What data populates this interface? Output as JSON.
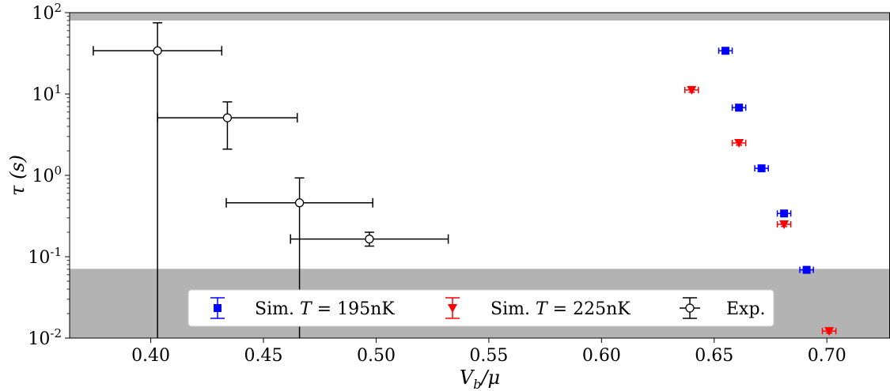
{
  "chart_data": {
    "type": "scatter",
    "title": "",
    "xlabel": "V_b/μ",
    "ylabel": "τ (s)",
    "xlim": [
      0.364,
      0.728
    ],
    "ylim": [
      0.01,
      100
    ],
    "yscale": "log",
    "grid": false,
    "legend_position": "lower-center",
    "x_ticks": [
      0.4,
      0.45,
      0.5,
      0.55,
      0.6,
      0.65,
      0.7
    ],
    "x_tick_labels": [
      "0.40",
      "0.45",
      "0.50",
      "0.55",
      "0.60",
      "0.65",
      "0.70"
    ],
    "y_ticks": [
      0.01,
      0.1,
      1,
      10,
      100
    ],
    "y_tick_labels": [
      {
        "base": "10",
        "exp": "-2"
      },
      {
        "base": "10",
        "exp": "-1"
      },
      {
        "base": "10",
        "exp": "0"
      },
      {
        "base": "10",
        "exp": "1"
      },
      {
        "base": "10",
        "exp": "2"
      }
    ],
    "shaded_regions": [
      {
        "y_from": 80,
        "y_to": 100,
        "color": "#b3b3b3"
      },
      {
        "y_from": 0.01,
        "y_to": 0.071,
        "color": "#b3b3b3"
      }
    ],
    "series": [
      {
        "name": "Sim. T = 195nK",
        "legend_prefix": "Sim. ",
        "legend_var": "T",
        "legend_suffix": " = 195nK",
        "color": "#0000ff",
        "marker": "square",
        "points": [
          {
            "x": 0.655,
            "y": 34,
            "xerr": 0.003,
            "y_low": 31,
            "y_high": 37
          },
          {
            "x": 0.661,
            "y": 6.8,
            "xerr": 0.003,
            "y_low": 6.2,
            "y_high": 7.4
          },
          {
            "x": 0.671,
            "y": 1.22,
            "xerr": 0.003,
            "y_low": 1.15,
            "y_high": 1.3
          },
          {
            "x": 0.681,
            "y": 0.34,
            "xerr": 0.003,
            "y_low": 0.32,
            "y_high": 0.36
          },
          {
            "x": 0.691,
            "y": 0.069,
            "xerr": 0.003,
            "y_low": 0.065,
            "y_high": 0.073
          }
        ]
      },
      {
        "name": "Sim. T = 225nK",
        "legend_prefix": "Sim. ",
        "legend_var": "T",
        "legend_suffix": " = 225nK",
        "color": "#ff0000",
        "marker": "triangle-down",
        "points": [
          {
            "x": 0.64,
            "y": 11.2,
            "xerr": 0.003,
            "y_low": 10.5,
            "y_high": 12.0
          },
          {
            "x": 0.661,
            "y": 2.5,
            "xerr": 0.003,
            "y_low": 2.35,
            "y_high": 2.65
          },
          {
            "x": 0.681,
            "y": 0.25,
            "xerr": 0.003,
            "y_low": 0.235,
            "y_high": 0.265
          },
          {
            "x": 0.701,
            "y": 0.0122,
            "xerr": 0.003,
            "y_low": 0.0115,
            "y_high": 0.013
          }
        ]
      },
      {
        "name": "Exp.",
        "color": "#000000",
        "marker": "circle-open",
        "points": [
          {
            "x": 0.403,
            "y": 34,
            "xerr": 0.0285,
            "y_low": 0.01,
            "y_high": 75
          },
          {
            "x": 0.434,
            "y": 5.1,
            "xerr": 0.031,
            "y_low": 2.1,
            "y_high": 8.0
          },
          {
            "x": 0.466,
            "y": 0.46,
            "xerr": 0.0325,
            "y_low": 0.01,
            "y_high": 0.93
          },
          {
            "x": 0.497,
            "y": 0.165,
            "xerr": 0.035,
            "y_low": 0.135,
            "y_high": 0.2
          }
        ]
      }
    ]
  }
}
